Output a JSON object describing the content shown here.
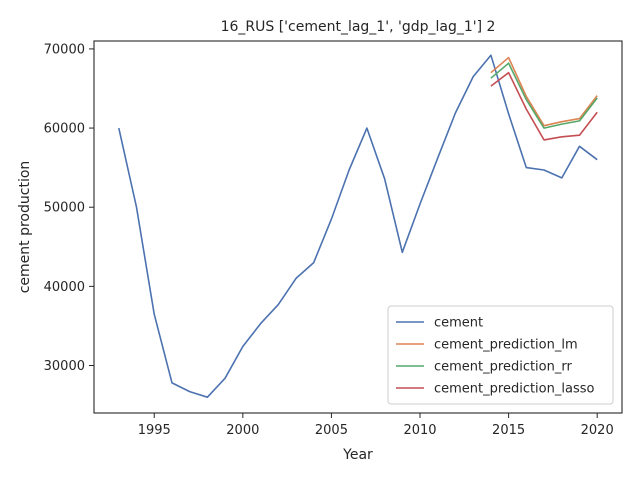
{
  "chart_data": {
    "type": "line",
    "title": "16_RUS ['cement_lag_1', 'gdp_lag_1'] 2",
    "xlabel": "Year",
    "ylabel": "cement production",
    "xlim": [
      1991.6,
      2021.4
    ],
    "ylim": [
      24000,
      71000
    ],
    "xticks": [
      1995,
      2000,
      2005,
      2010,
      2015,
      2020
    ],
    "yticks": [
      30000,
      40000,
      50000,
      60000,
      70000
    ],
    "legend": "lower-right",
    "grid": false,
    "series": [
      {
        "name": "cement",
        "color": "#4c72b0",
        "x": [
          1993,
          1994,
          1995,
          1996,
          1997,
          1998,
          1999,
          2000,
          2001,
          2002,
          2003,
          2004,
          2005,
          2006,
          2007,
          2008,
          2009,
          2010,
          2011,
          2012,
          2013,
          2014,
          2015,
          2016,
          2017,
          2018,
          2019,
          2020
        ],
        "y": [
          60000,
          50000,
          36500,
          27800,
          26700,
          26000,
          28400,
          32400,
          35300,
          37700,
          41000,
          43000,
          48500,
          54700,
          60000,
          53600,
          44300,
          50400,
          56200,
          61900,
          66500,
          69200,
          61800,
          55000,
          54700,
          53700,
          57700,
          56000
        ]
      },
      {
        "name": "cement_prediction_lm",
        "color": "#dd8452",
        "x": [
          2014,
          2015,
          2016,
          2017,
          2018,
          2019,
          2020
        ],
        "y": [
          67000,
          68900,
          64000,
          60300,
          60800,
          61200,
          64100
        ]
      },
      {
        "name": "cement_prediction_rr",
        "color": "#55a868",
        "x": [
          2014,
          2015,
          2016,
          2017,
          2018,
          2019,
          2020
        ],
        "y": [
          66300,
          68200,
          63600,
          60000,
          60500,
          60900,
          63800
        ]
      },
      {
        "name": "cement_prediction_lasso",
        "color": "#c44e52",
        "x": [
          2014,
          2015,
          2016,
          2017,
          2018,
          2019,
          2020
        ],
        "y": [
          65300,
          67000,
          62400,
          58500,
          58900,
          59100,
          62000
        ]
      }
    ]
  }
}
